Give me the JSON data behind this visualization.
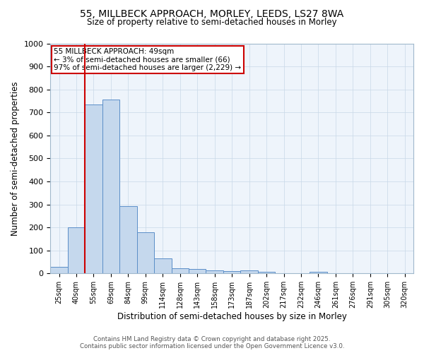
{
  "title_line1": "55, MILLBECK APPROACH, MORLEY, LEEDS, LS27 8WA",
  "title_line2": "Size of property relative to semi-detached houses in Morley",
  "xlabel": "Distribution of semi-detached houses by size in Morley",
  "ylabel": "Number of semi-detached properties",
  "categories": [
    "25sqm",
    "40sqm",
    "55sqm",
    "69sqm",
    "84sqm",
    "99sqm",
    "114sqm",
    "128sqm",
    "143sqm",
    "158sqm",
    "173sqm",
    "187sqm",
    "202sqm",
    "217sqm",
    "232sqm",
    "246sqm",
    "261sqm",
    "276sqm",
    "291sqm",
    "305sqm",
    "320sqm"
  ],
  "values": [
    28,
    202,
    735,
    755,
    293,
    178,
    65,
    22,
    20,
    13,
    10,
    12,
    7,
    2,
    0,
    8,
    2,
    0,
    0,
    0,
    0
  ],
  "bar_color": "#c5d8ed",
  "bar_edge_color": "#5b8ec8",
  "red_line_index": 2,
  "annotation_text": "55 MILLBECK APPROACH: 49sqm\n← 3% of semi-detached houses are smaller (66)\n97% of semi-detached houses are larger (2,229) →",
  "annotation_box_color": "#ffffff",
  "annotation_box_edge_color": "#cc0000",
  "ylim": [
    0,
    1000
  ],
  "yticks": [
    0,
    100,
    200,
    300,
    400,
    500,
    600,
    700,
    800,
    900,
    1000
  ],
  "footer_line1": "Contains HM Land Registry data © Crown copyright and database right 2025.",
  "footer_line2": "Contains public sector information licensed under the Open Government Licence v3.0.",
  "background_color": "#ffffff",
  "plot_bg_color": "#eef4fb",
  "grid_color": "#c8d8e8"
}
